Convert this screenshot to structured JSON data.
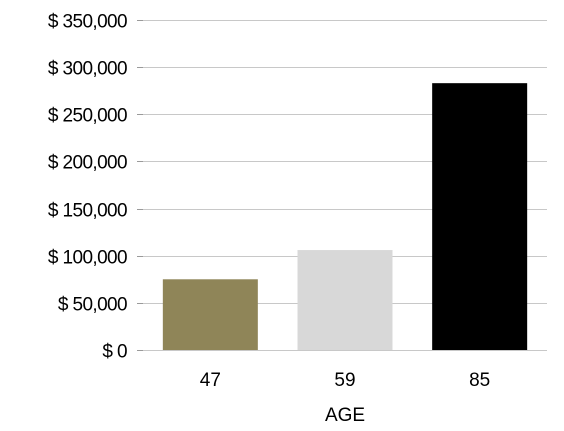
{
  "chart_data": {
    "type": "bar",
    "title": "",
    "xlabel": "AGE",
    "ylabel": "",
    "categories": [
      "47",
      "59",
      "85"
    ],
    "values": [
      75000,
      106000,
      283000
    ],
    "bar_colors": [
      "#8f8558",
      "#d8d8d8",
      "#000000"
    ],
    "ylim": [
      0,
      350000
    ],
    "yticks": [
      0,
      50000,
      100000,
      150000,
      200000,
      250000,
      300000,
      350000
    ],
    "ytick_labels": [
      "$ 0",
      "$ 50,000",
      "$ 100,000",
      "$ 150,000",
      "$ 200,000",
      "$ 250,000",
      "$ 300,000",
      "$ 350,000"
    ],
    "grid": true,
    "legend": "none"
  }
}
